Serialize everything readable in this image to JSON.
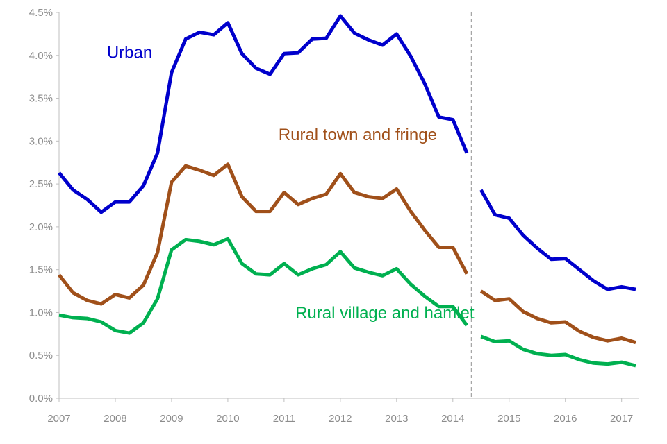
{
  "chart_data": {
    "type": "line",
    "title": "",
    "xlabel": "",
    "ylabel": "",
    "ylim": [
      0,
      4.5
    ],
    "xlim": [
      2007,
      2017.3
    ],
    "y_ticks": [
      0,
      0.5,
      1.0,
      1.5,
      2.0,
      2.5,
      3.0,
      3.5,
      4.0,
      4.5
    ],
    "y_tick_labels": [
      "0.0%",
      "0.5%",
      "1.0%",
      "1.5%",
      "2.0%",
      "2.5%",
      "3.0%",
      "3.5%",
      "4.0%",
      "4.5%"
    ],
    "x_ticks": [
      2007,
      2008,
      2009,
      2010,
      2011,
      2012,
      2013,
      2014,
      2015,
      2016,
      2017
    ],
    "x_tick_labels": [
      "2007",
      "2008",
      "2009",
      "2010",
      "2011",
      "2012",
      "2013",
      "2014",
      "2015",
      "2016",
      "2017"
    ],
    "grid": false,
    "break_at": 2014.33,
    "series": [
      {
        "name": "Urban",
        "color": "#0000cc",
        "segments": [
          {
            "x": [
              2007,
              2007.25,
              2007.5,
              2007.75,
              2008,
              2008.25,
              2008.5,
              2008.75,
              2009,
              2009.25,
              2009.5,
              2009.75,
              2010,
              2010.25,
              2010.5,
              2010.75,
              2011,
              2011.25,
              2011.5,
              2011.75,
              2012,
              2012.25,
              2012.5,
              2012.75,
              2013,
              2013.25,
              2013.5,
              2013.75,
              2014,
              2014.25
            ],
            "y": [
              2.63,
              2.43,
              2.32,
              2.17,
              2.29,
              2.29,
              2.48,
              2.86,
              3.8,
              4.19,
              4.27,
              4.24,
              4.38,
              4.02,
              3.85,
              3.78,
              4.02,
              4.03,
              4.19,
              4.2,
              4.46,
              4.26,
              4.18,
              4.12,
              4.25,
              3.99,
              3.67,
              3.28,
              3.25,
              2.86
            ]
          },
          {
            "x": [
              2014.5,
              2014.75,
              2015,
              2015.25,
              2015.5,
              2015.75,
              2016,
              2016.25,
              2016.5,
              2016.75,
              2017,
              2017.25
            ],
            "y": [
              2.43,
              2.14,
              2.1,
              1.9,
              1.75,
              1.62,
              1.63,
              1.5,
              1.37,
              1.27,
              1.3,
              1.27
            ]
          }
        ]
      },
      {
        "name": "Rural town and fringe",
        "color": "#a0501a",
        "segments": [
          {
            "x": [
              2007,
              2007.25,
              2007.5,
              2007.75,
              2008,
              2008.25,
              2008.5,
              2008.75,
              2009,
              2009.25,
              2009.5,
              2009.75,
              2010,
              2010.25,
              2010.5,
              2010.75,
              2011,
              2011.25,
              2011.5,
              2011.75,
              2012,
              2012.25,
              2012.5,
              2012.75,
              2013,
              2013.25,
              2013.5,
              2013.75,
              2014,
              2014.25
            ],
            "y": [
              1.44,
              1.23,
              1.14,
              1.1,
              1.21,
              1.17,
              1.32,
              1.7,
              2.52,
              2.71,
              2.66,
              2.6,
              2.73,
              2.35,
              2.18,
              2.18,
              2.4,
              2.26,
              2.33,
              2.38,
              2.62,
              2.4,
              2.35,
              2.33,
              2.44,
              2.18,
              1.96,
              1.76,
              1.76,
              1.45
            ]
          },
          {
            "x": [
              2014.5,
              2014.75,
              2015,
              2015.25,
              2015.5,
              2015.75,
              2016,
              2016.25,
              2016.5,
              2016.75,
              2017,
              2017.25
            ],
            "y": [
              1.25,
              1.14,
              1.16,
              1.01,
              0.93,
              0.88,
              0.89,
              0.78,
              0.71,
              0.67,
              0.7,
              0.65
            ]
          }
        ]
      },
      {
        "name": "Rural village and hamlet",
        "color": "#00b050",
        "segments": [
          {
            "x": [
              2007,
              2007.25,
              2007.5,
              2007.75,
              2008,
              2008.25,
              2008.5,
              2008.75,
              2009,
              2009.25,
              2009.5,
              2009.75,
              2010,
              2010.25,
              2010.5,
              2010.75,
              2011,
              2011.25,
              2011.5,
              2011.75,
              2012,
              2012.25,
              2012.5,
              2012.75,
              2013,
              2013.25,
              2013.5,
              2013.75,
              2014,
              2014.25
            ],
            "y": [
              0.97,
              0.94,
              0.93,
              0.89,
              0.79,
              0.76,
              0.88,
              1.16,
              1.73,
              1.85,
              1.83,
              1.79,
              1.86,
              1.57,
              1.45,
              1.44,
              1.57,
              1.44,
              1.51,
              1.56,
              1.71,
              1.52,
              1.47,
              1.43,
              1.51,
              1.33,
              1.19,
              1.07,
              1.07,
              0.85
            ]
          },
          {
            "x": [
              2014.5,
              2014.75,
              2015,
              2015.25,
              2015.5,
              2015.75,
              2016,
              2016.25,
              2016.5,
              2016.75,
              2017,
              2017.25
            ],
            "y": [
              0.72,
              0.66,
              0.67,
              0.57,
              0.52,
              0.5,
              0.51,
              0.45,
              0.41,
              0.4,
              0.42,
              0.38
            ]
          }
        ]
      }
    ],
    "annotations": [
      {
        "series": "Urban",
        "text": "Urban",
        "x": 2007.85,
        "y": 3.97
      },
      {
        "series": "Rural town and fringe",
        "text": "Rural town and fringe",
        "x": 2010.9,
        "y": 3.01
      },
      {
        "series": "Rural village and hamlet",
        "text": "Rural village and hamlet",
        "x": 2011.2,
        "y": 0.93
      }
    ]
  }
}
